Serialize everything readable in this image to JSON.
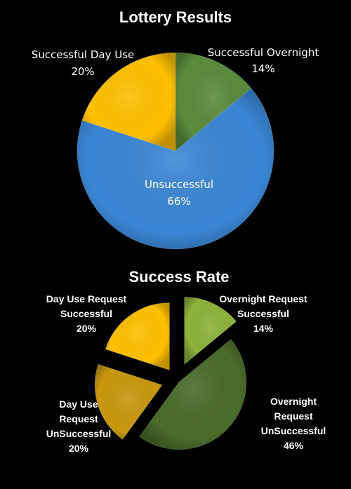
{
  "colors": {
    "background": "#000000",
    "day_use": "#FFC000",
    "overnight": "#5B8A3C",
    "unsuccessful": "#3A86D4",
    "overnight_request": "#8DB33A",
    "overnight_unsuccessful": "#4A6B2A",
    "dayuse_unsuccessful": "#C9980E"
  },
  "chart_data": [
    {
      "type": "pie",
      "title": "Lottery Results",
      "slices": [
        {
          "label": "Successful Overnight",
          "value": 14,
          "value_label": "14%",
          "color": "#5B8A3C"
        },
        {
          "label": "Unsuccessful",
          "value": 66,
          "value_label": "66%",
          "color": "#3A86D4"
        },
        {
          "label": "Successful Day Use",
          "value": 20,
          "value_label": "20%",
          "color": "#FFC000"
        }
      ]
    },
    {
      "type": "pie",
      "title": "Success Rate",
      "exploded": true,
      "slices": [
        {
          "label_lines": [
            "Overnight Request",
            "Successful"
          ],
          "value": 14,
          "value_label": "14%",
          "color": "#8DB33A"
        },
        {
          "label_lines": [
            "Overnight",
            "Request",
            "UnSuccessful"
          ],
          "value": 46,
          "value_label": "46%",
          "color": "#4A6B2A"
        },
        {
          "label_lines": [
            "Day Use",
            "Request",
            "UnSuccessful"
          ],
          "value": 20,
          "value_label": "20%",
          "color": "#C9980E"
        },
        {
          "label_lines": [
            "Day Use Request",
            "Successful"
          ],
          "value": 20,
          "value_label": "20%",
          "color": "#FFC000"
        }
      ]
    }
  ]
}
